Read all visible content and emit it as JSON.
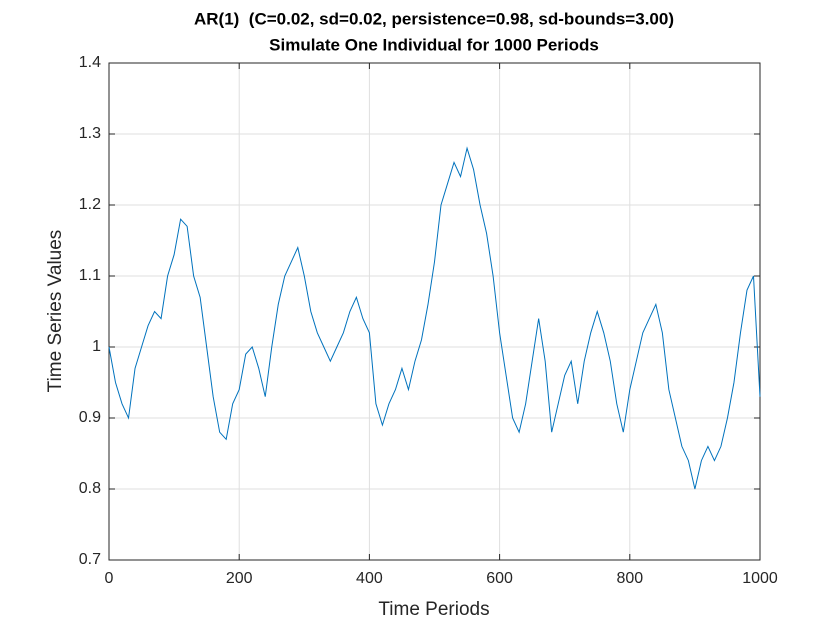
{
  "chart_data": {
    "type": "line",
    "title": "AR(1)  (C=0.02, sd=0.02, persistence=0.98, sd-bounds=3.00)",
    "subtitle": "Simulate One Individual for 1000 Periods",
    "x_label": "Time Periods",
    "y_label": "Time Series Values",
    "x": [
      0,
      10,
      20,
      30,
      40,
      50,
      60,
      70,
      80,
      90,
      100,
      110,
      120,
      130,
      140,
      150,
      160,
      170,
      180,
      190,
      200,
      210,
      220,
      230,
      240,
      250,
      260,
      270,
      280,
      290,
      300,
      310,
      320,
      330,
      340,
      350,
      360,
      370,
      380,
      390,
      400,
      410,
      420,
      430,
      440,
      450,
      460,
      470,
      480,
      490,
      500,
      510,
      520,
      530,
      540,
      550,
      560,
      570,
      580,
      590,
      600,
      610,
      620,
      630,
      640,
      650,
      660,
      670,
      680,
      690,
      700,
      710,
      720,
      730,
      740,
      750,
      760,
      770,
      780,
      790,
      800,
      810,
      820,
      830,
      840,
      850,
      860,
      870,
      880,
      890,
      900,
      910,
      920,
      930,
      940,
      950,
      960,
      970,
      980,
      990,
      1000
    ],
    "values": [
      1.0,
      0.95,
      0.92,
      0.9,
      0.97,
      1.0,
      1.03,
      1.05,
      1.04,
      1.1,
      1.13,
      1.18,
      1.17,
      1.1,
      1.07,
      1.0,
      0.93,
      0.88,
      0.87,
      0.92,
      0.94,
      0.99,
      1.0,
      0.97,
      0.93,
      1.0,
      1.06,
      1.1,
      1.12,
      1.14,
      1.1,
      1.05,
      1.02,
      1.0,
      0.98,
      1.0,
      1.02,
      1.05,
      1.07,
      1.04,
      1.02,
      0.92,
      0.89,
      0.92,
      0.94,
      0.97,
      0.94,
      0.98,
      1.01,
      1.06,
      1.12,
      1.2,
      1.23,
      1.26,
      1.24,
      1.28,
      1.25,
      1.2,
      1.16,
      1.1,
      1.02,
      0.96,
      0.9,
      0.88,
      0.92,
      0.98,
      1.04,
      0.98,
      0.88,
      0.92,
      0.96,
      0.98,
      0.92,
      0.98,
      1.02,
      1.05,
      1.02,
      0.98,
      0.92,
      0.88,
      0.94,
      0.98,
      1.02,
      1.04,
      1.06,
      1.02,
      0.94,
      0.9,
      0.86,
      0.84,
      0.8,
      0.84,
      0.86,
      0.84,
      0.86,
      0.9,
      0.95,
      1.02,
      1.08,
      1.1,
      0.93
    ],
    "color": "#0072bd",
    "xlim": [
      0,
      1000
    ],
    "xticks": [
      0,
      200,
      400,
      600,
      800,
      1000
    ],
    "ylim": [
      0.7,
      1.4
    ],
    "yticks": [
      0.7,
      0.8,
      0.9,
      1,
      1.1,
      1.2,
      1.3,
      1.4
    ],
    "grid": true
  }
}
